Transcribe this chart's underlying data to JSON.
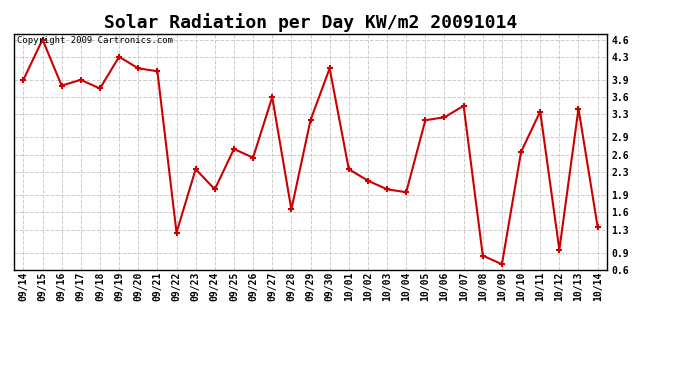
{
  "title": "Solar Radiation per Day KW/m2 20091014",
  "copyright_text": "Copyright 2009 Cartronics.com",
  "labels": [
    "09/14",
    "09/15",
    "09/16",
    "09/17",
    "09/18",
    "09/19",
    "09/20",
    "09/21",
    "09/22",
    "09/23",
    "09/24",
    "09/25",
    "09/26",
    "09/27",
    "09/28",
    "09/29",
    "09/30",
    "10/01",
    "10/02",
    "10/03",
    "10/04",
    "10/05",
    "10/06",
    "10/07",
    "10/08",
    "10/09",
    "10/10",
    "10/11",
    "10/12",
    "10/13",
    "10/14"
  ],
  "values": [
    3.9,
    4.6,
    3.8,
    3.9,
    3.75,
    4.3,
    4.1,
    4.05,
    1.25,
    2.35,
    2.0,
    2.7,
    2.55,
    3.6,
    1.65,
    3.2,
    4.1,
    2.35,
    2.15,
    2.0,
    1.95,
    3.2,
    3.25,
    3.45,
    0.85,
    0.7,
    2.65,
    3.35,
    0.95,
    3.4,
    1.35
  ],
  "line_color": "#cc0000",
  "marker": "+",
  "marker_size": 5,
  "marker_edge_width": 1.5,
  "line_width": 1.5,
  "ylim": [
    0.6,
    4.7
  ],
  "yticks": [
    0.6,
    0.9,
    1.3,
    1.6,
    1.9,
    2.3,
    2.6,
    2.9,
    3.3,
    3.6,
    3.9,
    4.3,
    4.6
  ],
  "grid_color": "#cccccc",
  "grid_style": "--",
  "bg_color": "#ffffff",
  "title_fontsize": 13,
  "tick_fontsize": 7,
  "copyright_fontsize": 6.5
}
